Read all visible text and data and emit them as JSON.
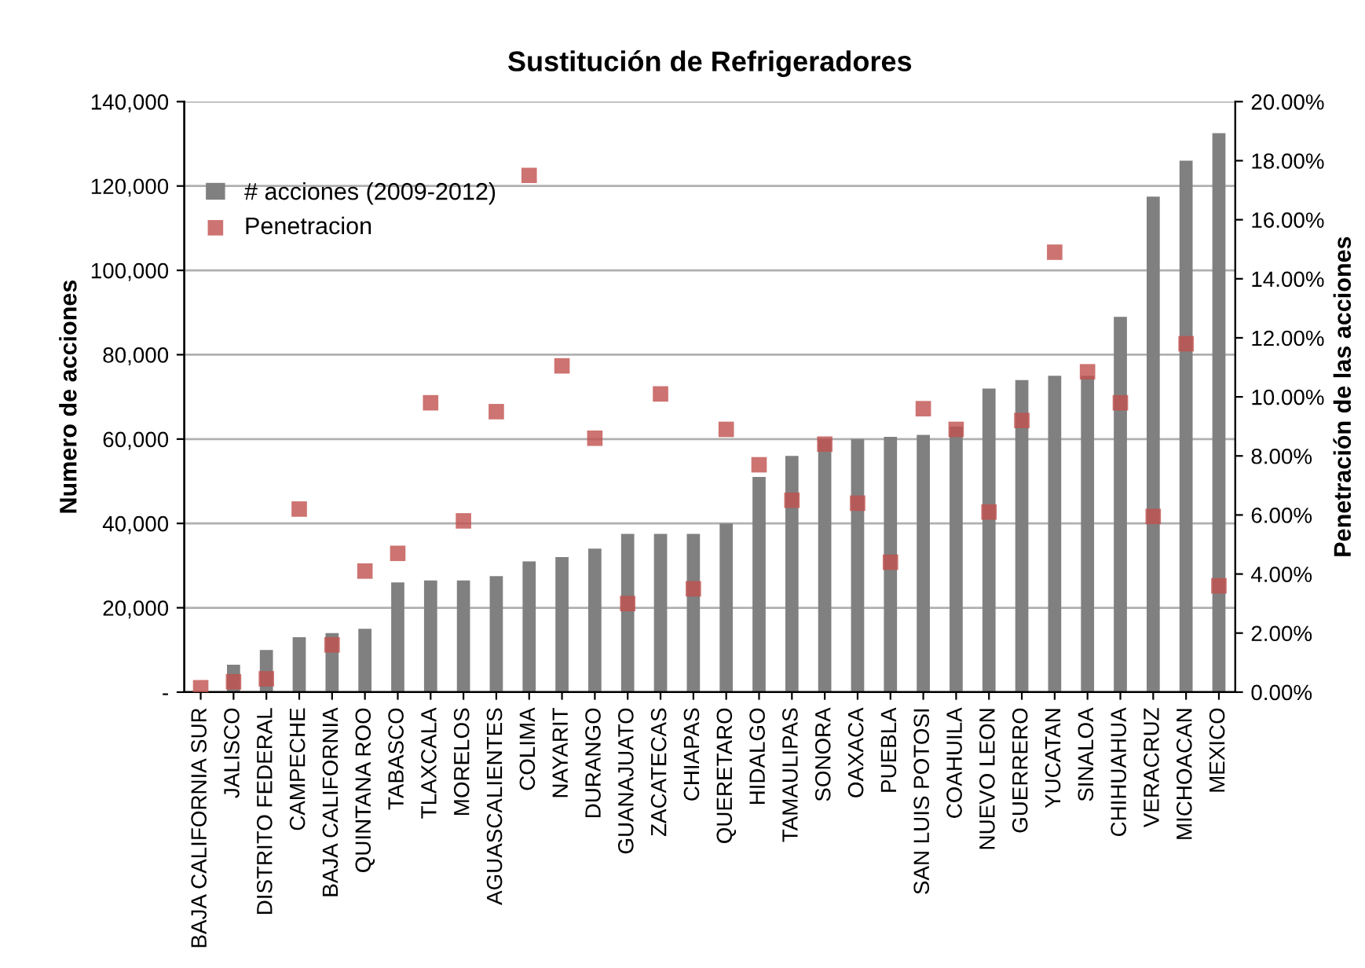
{
  "chart_data": {
    "type": "bar",
    "title": "Sustitución de Refrigeradores",
    "ylabel": "Numero de acciones",
    "y2label": "Penetración de las acciones",
    "categories": [
      "BAJA CALIFORNIA SUR",
      "JALISCO",
      "DISTRITO FEDERAL",
      "CAMPECHE",
      "BAJA CALIFORNIA",
      "QUINTANA ROO",
      "TABASCO",
      "TLAXCALA",
      "MORELOS",
      "AGUASCALIENTES",
      "COLIMA",
      "NAYARIT",
      "DURANGO",
      "GUANAJUATO",
      "ZACATECAS",
      "CHIAPAS",
      "QUERETARO",
      "HIDALGO",
      "TAMAULIPAS",
      "SONORA",
      "OAXACA",
      "PUEBLA",
      "SAN LUIS POTOSI",
      "COAHUILA",
      "NUEVO LEON",
      "GUERRERO",
      "YUCATAN",
      "SINALOA",
      "CHIHUAHUA",
      "VERACRUZ",
      "MICHOACAN",
      "MEXICO"
    ],
    "series": [
      {
        "name": "# acciones (2009-2012)",
        "color": "#808080",
        "values": [
          null,
          6500,
          10000,
          13000,
          14000,
          15000,
          26000,
          26500,
          26500,
          27500,
          31000,
          32000,
          34000,
          37500,
          37500,
          37500,
          40000,
          51000,
          56000,
          60000,
          60000,
          60500,
          61000,
          63000,
          72000,
          74000,
          75000,
          75000,
          89000,
          117500,
          126000,
          132500
        ]
      },
      {
        "name": "Penetracion",
        "type": "scatter",
        "axis": "y2",
        "marker": "square",
        "color": "#c0504d",
        "values": [
          0.15,
          0.35,
          0.45,
          6.2,
          1.6,
          4.1,
          4.7,
          9.8,
          5.8,
          9.5,
          17.5,
          11.05,
          8.6,
          3.0,
          10.1,
          3.5,
          8.9,
          7.7,
          6.5,
          8.4,
          6.4,
          4.4,
          9.6,
          8.9,
          6.1,
          9.2,
          14.9,
          10.85,
          9.8,
          5.95,
          11.8,
          3.6
        ]
      }
    ],
    "ylim": [
      0,
      140000
    ],
    "yticks": [
      {
        "value": 0,
        "label": "-"
      },
      {
        "value": 20000,
        "label": "20,000"
      },
      {
        "value": 40000,
        "label": "40,000"
      },
      {
        "value": 60000,
        "label": "60,000"
      },
      {
        "value": 80000,
        "label": "80,000"
      },
      {
        "value": 100000,
        "label": "100,000"
      },
      {
        "value": 120000,
        "label": "120,000"
      },
      {
        "value": 140000,
        "label": "140,000"
      }
    ],
    "y2lim": [
      0,
      20
    ],
    "y2ticks": [
      {
        "value": 0,
        "label": "0.00%"
      },
      {
        "value": 2,
        "label": "2.00%"
      },
      {
        "value": 4,
        "label": "4.00%"
      },
      {
        "value": 6,
        "label": "6.00%"
      },
      {
        "value": 8,
        "label": "8.00%"
      },
      {
        "value": 10,
        "label": "10.00%"
      },
      {
        "value": 12,
        "label": "12.00%"
      },
      {
        "value": 14,
        "label": "14.00%"
      },
      {
        "value": 16,
        "label": "16.00%"
      },
      {
        "value": 18,
        "label": "18.00%"
      },
      {
        "value": 20,
        "label": "20.00%"
      }
    ],
    "grid": "y",
    "legend": "top left"
  }
}
